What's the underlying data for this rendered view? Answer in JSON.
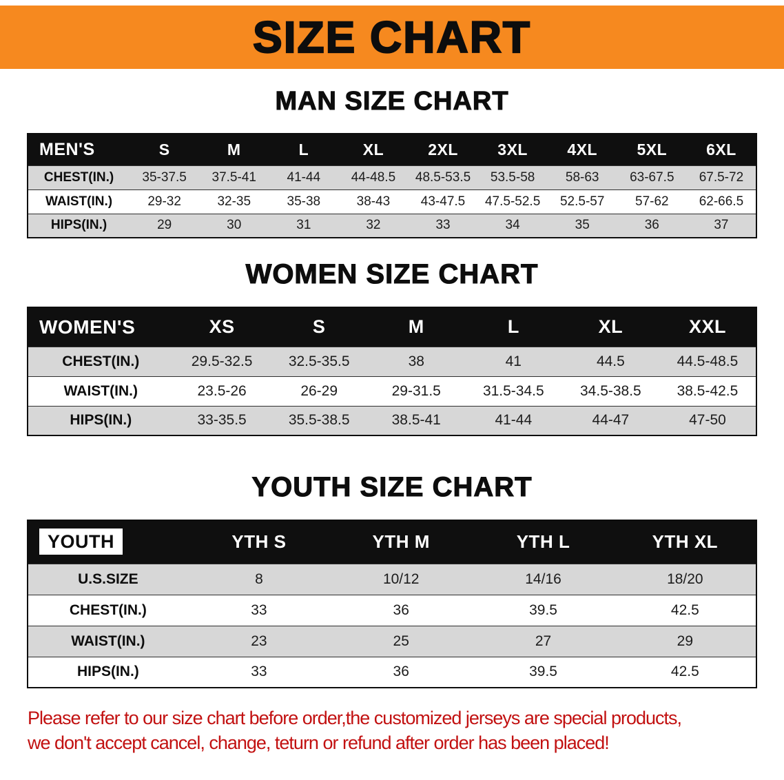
{
  "banner": {
    "title": "SIZE CHART"
  },
  "colors": {
    "banner_bg": "#F6891F",
    "table_header_bg": "#0F0F0F",
    "row_shade": "#D7D7D7",
    "disclaimer_text": "#C21111"
  },
  "sections": [
    {
      "heading": "MAN SIZE CHART",
      "table": {
        "header": [
          "MEN'S",
          "S",
          "M",
          "L",
          "XL",
          "2XL",
          "3XL",
          "4XL",
          "5XL",
          "6XL"
        ],
        "rows": [
          [
            "CHEST(IN.)",
            "35-37.5",
            "37.5-41",
            "41-44",
            "44-48.5",
            "48.5-53.5",
            "53.5-58",
            "58-63",
            "63-67.5",
            "67.5-72"
          ],
          [
            "WAIST(IN.)",
            "29-32",
            "32-35",
            "35-38",
            "38-43",
            "43-47.5",
            "47.5-52.5",
            "52.5-57",
            "57-62",
            "62-66.5"
          ],
          [
            "HIPS(IN.)",
            "29",
            "30",
            "31",
            "32",
            "33",
            "34",
            "35",
            "36",
            "37"
          ]
        ]
      }
    },
    {
      "heading": "WOMEN SIZE CHART",
      "table": {
        "header": [
          "WOMEN'S",
          "XS",
          "S",
          "M",
          "L",
          "XL",
          "XXL"
        ],
        "rows": [
          [
            "CHEST(IN.)",
            "29.5-32.5",
            "32.5-35.5",
            "38",
            "41",
            "44.5",
            "44.5-48.5"
          ],
          [
            "WAIST(IN.)",
            "23.5-26",
            "26-29",
            "29-31.5",
            "31.5-34.5",
            "34.5-38.5",
            "38.5-42.5"
          ],
          [
            "HIPS(IN.)",
            "33-35.5",
            "35.5-38.5",
            "38.5-41",
            "41-44",
            "44-47",
            "47-50"
          ]
        ]
      }
    },
    {
      "heading": "YOUTH SIZE CHART",
      "table": {
        "header": [
          "YOUTH",
          "YTH S",
          "YTH M",
          "YTH L",
          "YTH XL"
        ],
        "rows": [
          [
            "U.S.SIZE",
            "8",
            "10/12",
            "14/16",
            "18/20"
          ],
          [
            "CHEST(IN.)",
            "33",
            "36",
            "39.5",
            "42.5"
          ],
          [
            "WAIST(IN.)",
            "23",
            "25",
            "27",
            "29"
          ],
          [
            "HIPS(IN.)",
            "33",
            "36",
            "39.5",
            "42.5"
          ]
        ]
      }
    }
  ],
  "footer": {
    "line1": "Please refer to our size chart before order,the customized jerseys are special products,",
    "line2": "we don't accept cancel, change, teturn or refund after order has been placed!"
  }
}
